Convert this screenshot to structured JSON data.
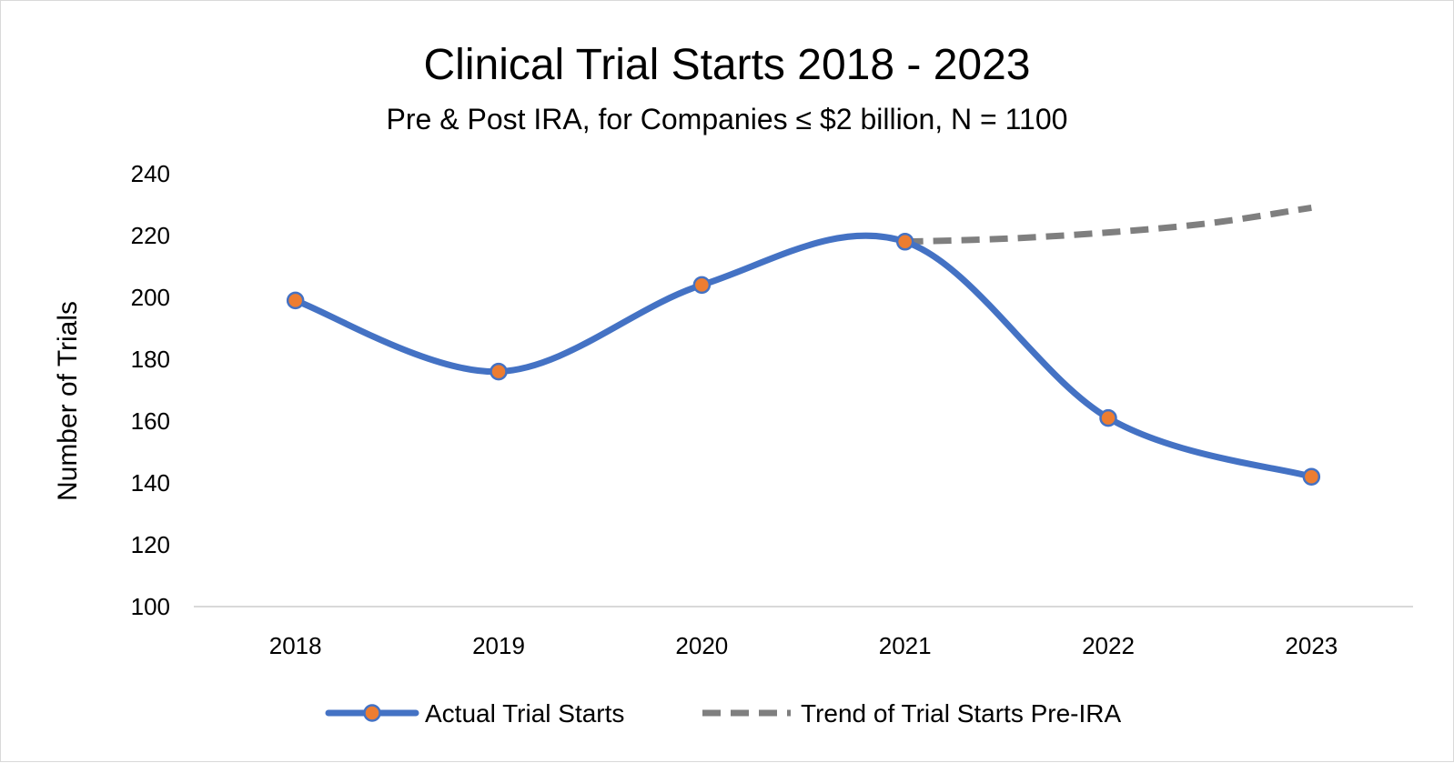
{
  "chart_data": {
    "type": "line",
    "title": "Clinical Trial Starts 2018 - 2023",
    "subtitle": "Pre & Post IRA,  for Companies ≤ $2 billion, N = 1100",
    "xlabel": "",
    "ylabel": "Number of Trials",
    "categories": [
      "2018",
      "2019",
      "2020",
      "2021",
      "2022",
      "2023"
    ],
    "ylim": [
      100,
      240
    ],
    "yticks": [
      100,
      120,
      140,
      160,
      180,
      200,
      220,
      240
    ],
    "grid": false,
    "legend_position": "bottom",
    "series": [
      {
        "name": "Actual Trial Starts",
        "style": "smooth-solid-with-markers",
        "color": "#4472C4",
        "marker_color": "#ED7D31",
        "values": [
          199,
          176,
          204,
          218,
          161,
          142
        ]
      },
      {
        "name": "Trend of Trial Starts Pre-IRA",
        "style": "dashed",
        "color": "#7F7F7F",
        "x": [
          "2021",
          "2021.5",
          "2022",
          "2022.5",
          "2023"
        ],
        "values": [
          218,
          219,
          221,
          224,
          229
        ]
      }
    ]
  }
}
